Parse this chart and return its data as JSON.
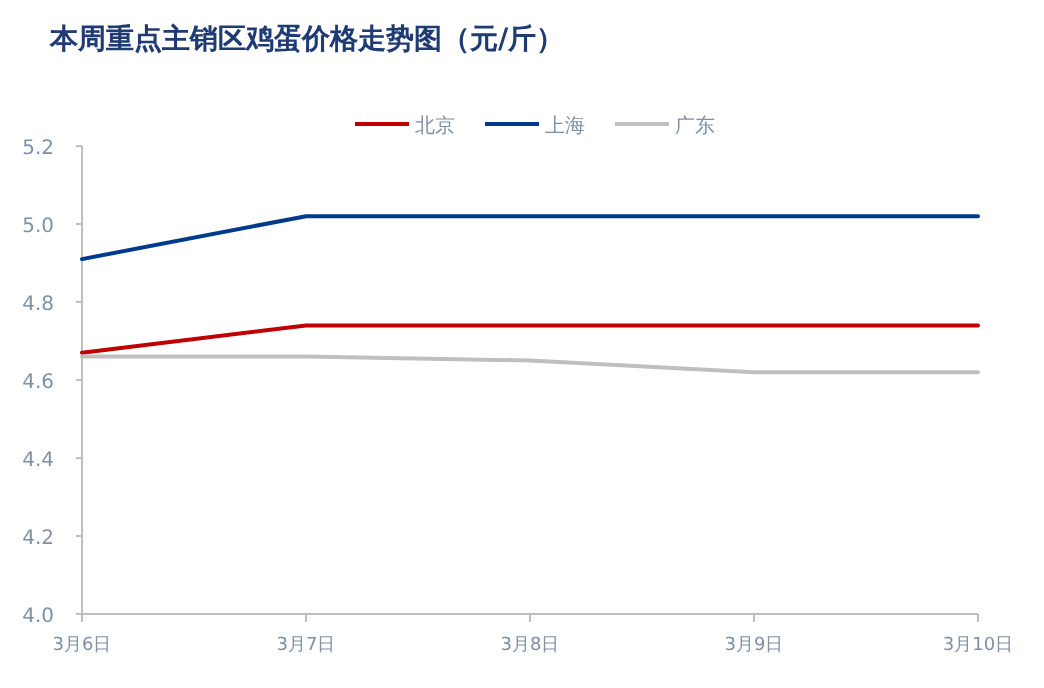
{
  "chart_data": {
    "type": "line",
    "title": "本周重点主销区鸡蛋价格走势图（元/斤）",
    "categories": [
      "3月6日",
      "3月7日",
      "3月8日",
      "3月9日",
      "3月10日"
    ],
    "series": [
      {
        "name": "北京",
        "color": "#c00000",
        "values": [
          4.67,
          4.74,
          4.74,
          4.74,
          4.74
        ]
      },
      {
        "name": "上海",
        "color": "#003a8c",
        "values": [
          4.91,
          5.02,
          5.02,
          5.02,
          5.02
        ]
      },
      {
        "name": "广东",
        "color": "#bfbfbf",
        "values": [
          4.66,
          4.66,
          4.65,
          4.62,
          4.62
        ]
      }
    ],
    "ylim": [
      4.0,
      5.2
    ],
    "yticks": [
      {
        "value": 4.0,
        "label": "4.0"
      },
      4.2,
      4.4,
      4.6,
      4.8,
      {
        "value": 5.0,
        "label": "5.0"
      },
      5.2
    ],
    "grid": false,
    "legend": "top",
    "marker": "none",
    "line_style": "solid"
  }
}
